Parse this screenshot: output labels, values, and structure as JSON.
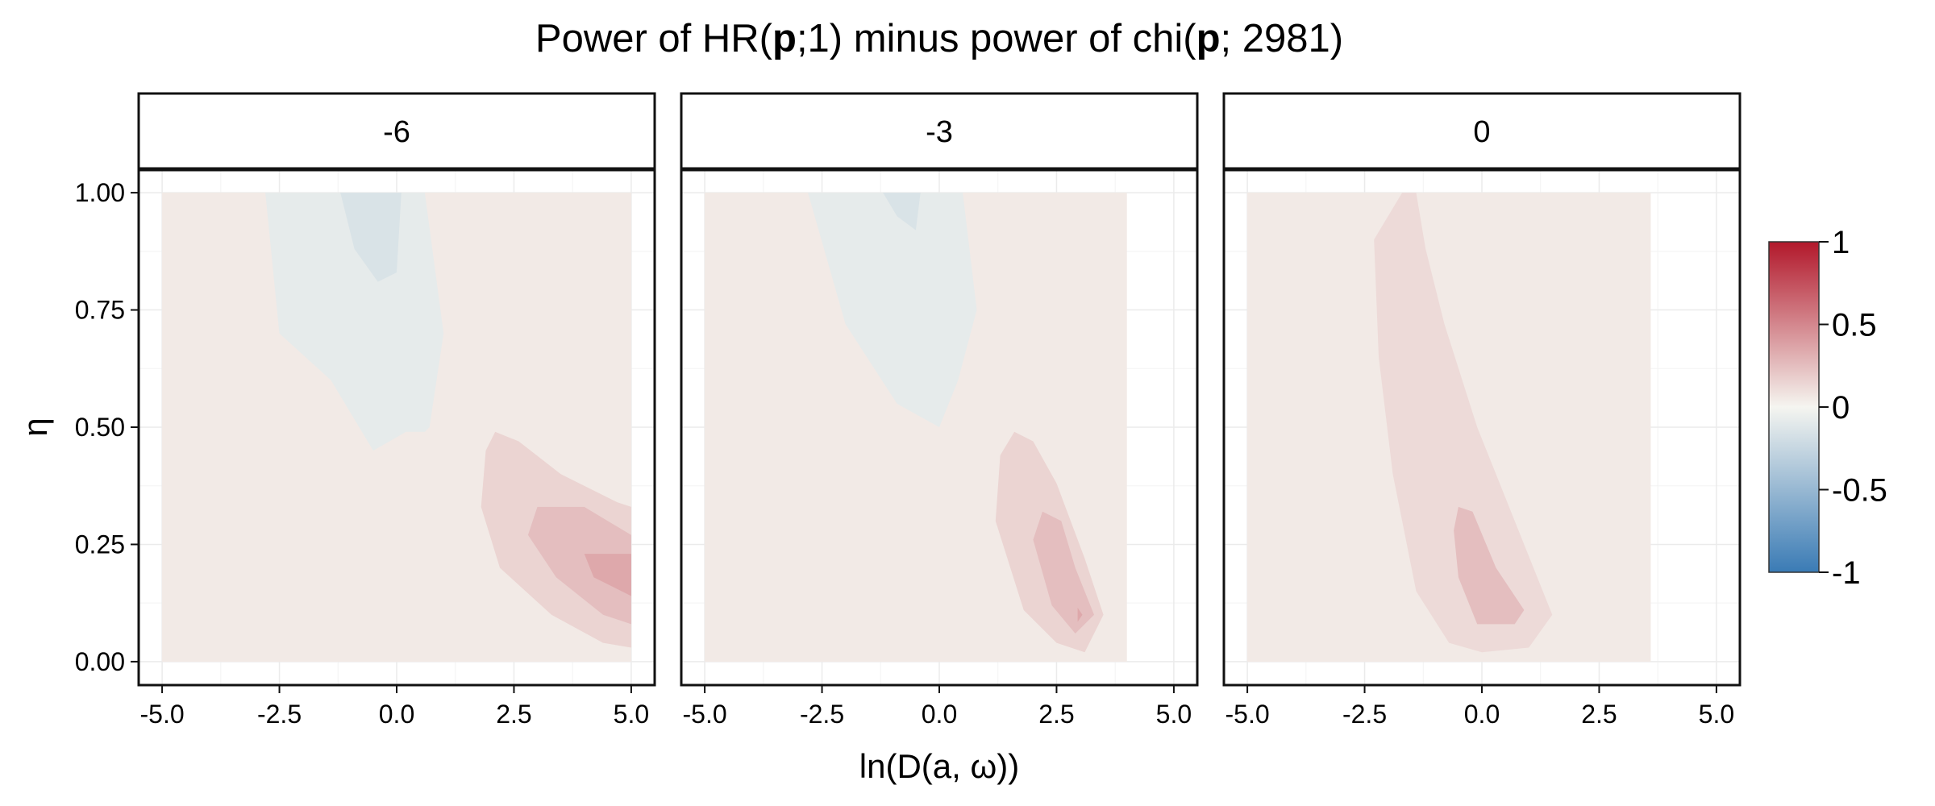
{
  "chart_data": {
    "type": "contour",
    "title": {
      "pre1": "Power of HR(",
      "bold1": "p",
      "mid": ";1) minus power of chi(",
      "bold2": "p",
      "post": "; 2981)"
    },
    "xlabel": "ln(D(a, ω))",
    "ylabel": "η",
    "xlim": [
      -5.5,
      5.5
    ],
    "ylim": [
      -0.05,
      1.05
    ],
    "x_ticks": [
      -5.0,
      -2.5,
      0.0,
      2.5,
      5.0
    ],
    "x_tick_labels": [
      "-5.0",
      "-2.5",
      "0.0",
      "2.5",
      "5.0"
    ],
    "y_ticks": [
      0.0,
      0.25,
      0.5,
      0.75,
      1.0
    ],
    "y_tick_labels": [
      "0.00",
      "0.25",
      "0.50",
      "0.75",
      "1.00"
    ],
    "grid": true,
    "facet_variable_values": [
      "-6",
      "-3",
      "0"
    ],
    "colorbar": {
      "range": [
        -1,
        1
      ],
      "ticks": [
        1,
        0.5,
        0,
        -0.5,
        -1
      ],
      "tick_labels": [
        "1",
        "0.5",
        "0",
        "-0.5",
        "-1"
      ],
      "colors": {
        "low": "#3a7bb5",
        "mid": "#f5f5f0",
        "high": "#b2182b"
      },
      "placement": "right"
    },
    "panels": [
      {
        "label": "-6",
        "data_region": {
          "x": [
            -5,
            5
          ],
          "y": [
            0,
            1
          ]
        },
        "base_level": 0.05,
        "regions": [
          {
            "level": -0.08,
            "points": [
              [
                -2.8,
                1.0
              ],
              [
                0.6,
                1.0
              ],
              [
                1.0,
                0.7
              ],
              [
                0.7,
                0.5
              ],
              [
                0.6,
                0.49
              ],
              [
                0.2,
                0.49
              ],
              [
                -0.5,
                0.45
              ],
              [
                -1.4,
                0.6
              ],
              [
                -2.5,
                0.7
              ]
            ]
          },
          {
            "level": -0.15,
            "points": [
              [
                -1.2,
                1.0
              ],
              [
                0.1,
                1.0
              ],
              [
                0.0,
                0.83
              ],
              [
                -0.4,
                0.81
              ],
              [
                -0.9,
                0.88
              ]
            ]
          },
          {
            "level": 0.15,
            "points": [
              [
                2.1,
                0.49
              ],
              [
                2.6,
                0.47
              ],
              [
                3.5,
                0.4
              ],
              [
                4.7,
                0.34
              ],
              [
                5.0,
                0.33
              ],
              [
                5.0,
                0.03
              ],
              [
                4.4,
                0.04
              ],
              [
                3.3,
                0.1
              ],
              [
                2.2,
                0.2
              ],
              [
                1.8,
                0.33
              ],
              [
                1.9,
                0.45
              ]
            ]
          },
          {
            "level": 0.25,
            "points": [
              [
                3.0,
                0.33
              ],
              [
                4.0,
                0.33
              ],
              [
                5.0,
                0.27
              ],
              [
                5.0,
                0.08
              ],
              [
                4.4,
                0.1
              ],
              [
                3.4,
                0.18
              ],
              [
                2.8,
                0.27
              ]
            ]
          },
          {
            "level": 0.35,
            "points": [
              [
                4.0,
                0.23
              ],
              [
                5.0,
                0.23
              ],
              [
                5.0,
                0.14
              ],
              [
                4.2,
                0.18
              ]
            ]
          }
        ]
      },
      {
        "label": "-3",
        "data_region": {
          "x": [
            -5,
            4
          ],
          "y": [
            0,
            1
          ]
        },
        "base_level": 0.05,
        "regions": [
          {
            "level": -0.08,
            "points": [
              [
                -2.8,
                1.0
              ],
              [
                0.5,
                1.0
              ],
              [
                0.8,
                0.75
              ],
              [
                0.4,
                0.6
              ],
              [
                0.0,
                0.5
              ],
              [
                -0.9,
                0.55
              ],
              [
                -2.0,
                0.72
              ]
            ]
          },
          {
            "level": -0.15,
            "points": [
              [
                -1.2,
                1.0
              ],
              [
                -0.4,
                1.0
              ],
              [
                -0.5,
                0.92
              ],
              [
                -0.9,
                0.95
              ]
            ]
          },
          {
            "level": 0.15,
            "points": [
              [
                1.6,
                0.49
              ],
              [
                2.0,
                0.47
              ],
              [
                2.5,
                0.38
              ],
              [
                3.1,
                0.22
              ],
              [
                3.5,
                0.1
              ],
              [
                3.1,
                0.02
              ],
              [
                2.5,
                0.04
              ],
              [
                1.8,
                0.11
              ],
              [
                1.2,
                0.3
              ],
              [
                1.3,
                0.44
              ]
            ]
          },
          {
            "level": 0.25,
            "points": [
              [
                2.2,
                0.32
              ],
              [
                2.6,
                0.3
              ],
              [
                2.9,
                0.2
              ],
              [
                3.3,
                0.1
              ],
              [
                2.9,
                0.06
              ],
              [
                2.4,
                0.12
              ],
              [
                2.0,
                0.26
              ]
            ]
          },
          {
            "level": 0.35,
            "points": [
              [
                2.95,
                0.115
              ],
              [
                3.05,
                0.1
              ],
              [
                2.95,
                0.085
              ]
            ]
          }
        ]
      },
      {
        "label": "0",
        "data_region": {
          "x": [
            -5,
            3.6
          ],
          "y": [
            0,
            1
          ]
        },
        "base_level": 0.05,
        "regions": [
          {
            "level": 0.12,
            "points": [
              [
                -1.7,
                1.0
              ],
              [
                -1.4,
                1.0
              ],
              [
                -1.2,
                0.88
              ],
              [
                -0.8,
                0.72
              ],
              [
                -0.1,
                0.5
              ],
              [
                0.5,
                0.35
              ],
              [
                1.5,
                0.1
              ],
              [
                1.0,
                0.03
              ],
              [
                0.0,
                0.02
              ],
              [
                -0.7,
                0.04
              ],
              [
                -1.4,
                0.15
              ],
              [
                -1.9,
                0.4
              ],
              [
                -2.2,
                0.65
              ],
              [
                -2.3,
                0.9
              ]
            ]
          },
          {
            "level": 0.25,
            "points": [
              [
                -0.5,
                0.33
              ],
              [
                -0.2,
                0.32
              ],
              [
                0.3,
                0.2
              ],
              [
                0.9,
                0.11
              ],
              [
                0.7,
                0.08
              ],
              [
                -0.1,
                0.08
              ],
              [
                -0.5,
                0.18
              ],
              [
                -0.6,
                0.28
              ]
            ]
          }
        ]
      }
    ]
  }
}
